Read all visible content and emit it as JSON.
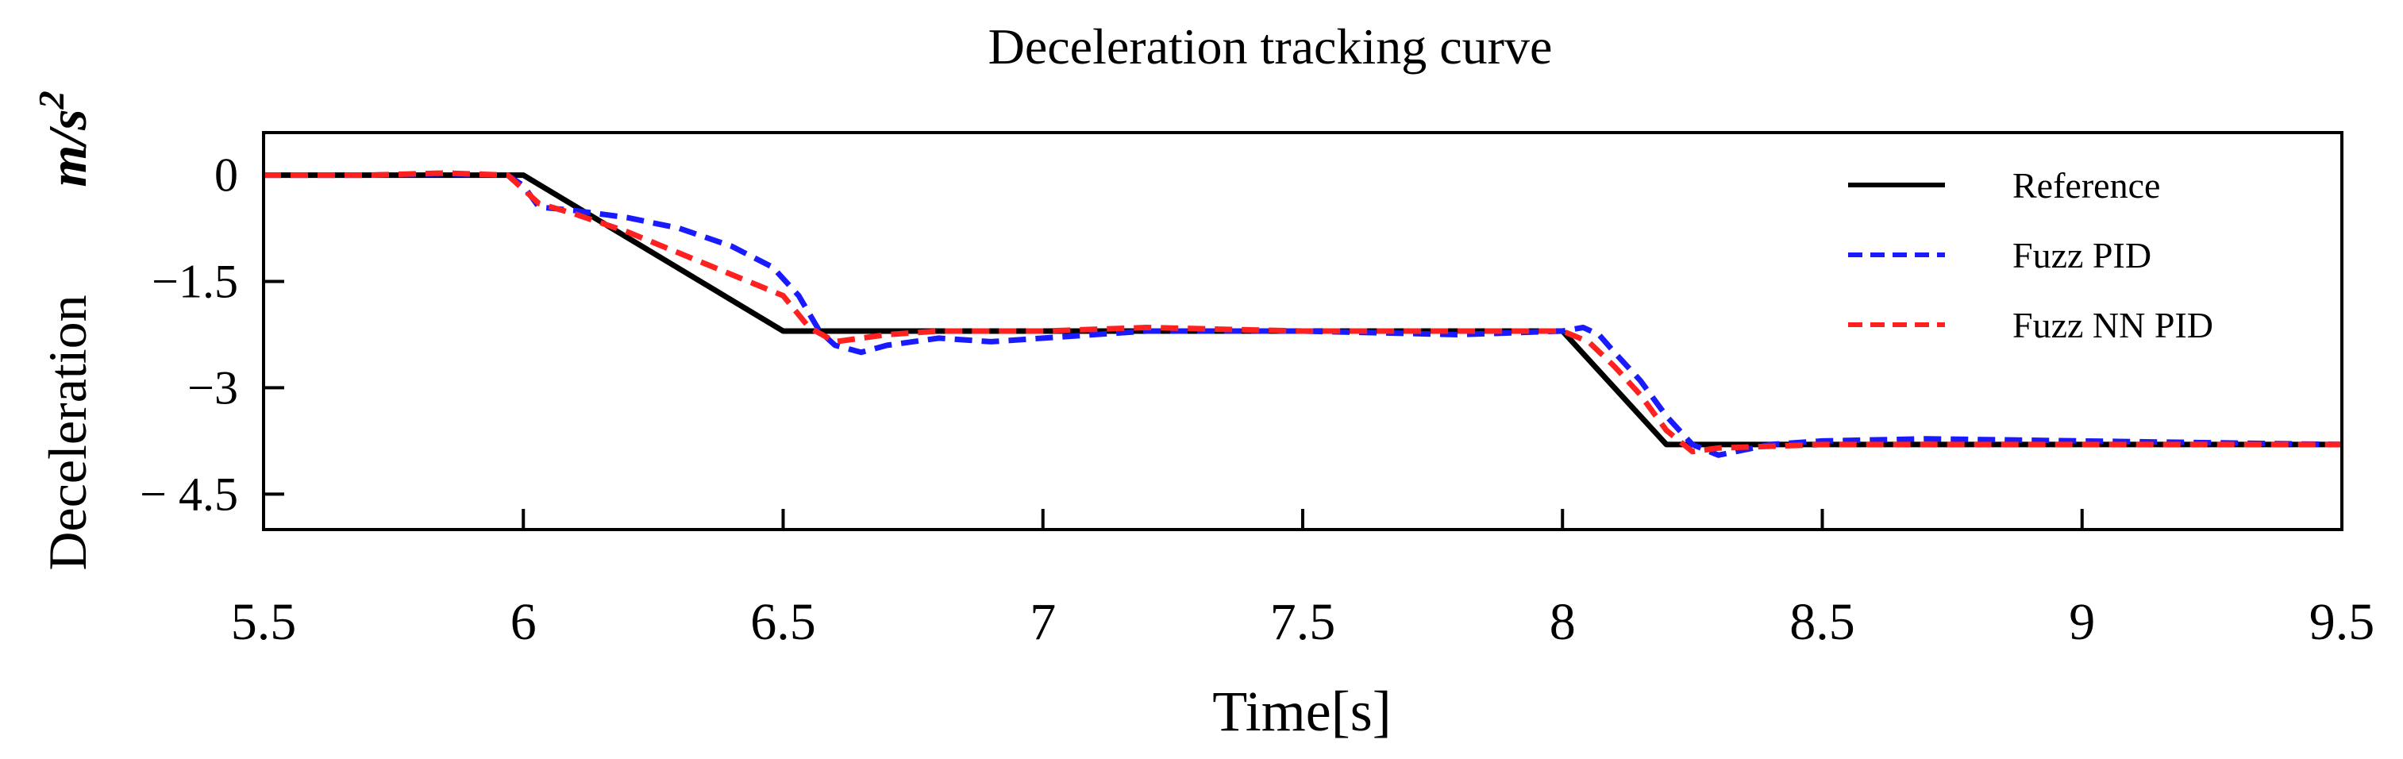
{
  "chart_data": {
    "type": "line",
    "title": "Deceleration tracking curve",
    "xlabel": "Time[s]",
    "ylabel": "Deceleration",
    "y_unit": {
      "base": "m/s",
      "exponent": "2"
    },
    "xlim": [
      5.5,
      9.5
    ],
    "ylim": [
      -5.0,
      0.6
    ],
    "x_ticks": [
      5.5,
      6,
      6.5,
      7,
      7.5,
      8,
      8.5,
      9,
      9.5
    ],
    "x_tick_labels": [
      "5.5",
      "6",
      "6.5",
      "7",
      "7.5",
      "8",
      "8.5",
      "9",
      "9.5"
    ],
    "y_ticks": [
      0,
      -1.5,
      -3,
      -4.5
    ],
    "y_tick_labels": [
      "0",
      "−1.5",
      "−3",
      "− 4.5"
    ],
    "grid": false,
    "legend_position": "top-right",
    "series": [
      {
        "name": "Reference",
        "color": "#000000",
        "dash": "solid",
        "x": [
          5.5,
          6.0,
          6.5,
          8.0,
          8.2,
          9.5
        ],
        "y": [
          0,
          0,
          -2.2,
          -2.2,
          -3.8,
          -3.8
        ]
      },
      {
        "name": "Fuzz PID",
        "color": "#1a1aff",
        "dash": "dashed",
        "x": [
          5.5,
          5.7,
          5.85,
          5.97,
          6.0,
          6.03,
          6.1,
          6.2,
          6.3,
          6.4,
          6.48,
          6.53,
          6.57,
          6.6,
          6.65,
          6.7,
          6.8,
          6.9,
          7.0,
          7.2,
          7.5,
          7.8,
          8.0,
          8.04,
          8.07,
          8.1,
          8.15,
          8.2,
          8.25,
          8.3,
          8.4,
          8.5,
          8.7,
          9.0,
          9.5
        ],
        "y": [
          0,
          0,
          0.02,
          0.0,
          -0.15,
          -0.45,
          -0.5,
          -0.6,
          -0.75,
          -1.0,
          -1.3,
          -1.7,
          -2.2,
          -2.4,
          -2.5,
          -2.4,
          -2.3,
          -2.35,
          -2.3,
          -2.2,
          -2.2,
          -2.25,
          -2.2,
          -2.15,
          -2.25,
          -2.5,
          -2.9,
          -3.4,
          -3.8,
          -3.95,
          -3.8,
          -3.75,
          -3.72,
          -3.75,
          -3.8
        ]
      },
      {
        "name": "Fuzz NN PID",
        "color": "#ff2020",
        "dash": "dashed",
        "x": [
          5.5,
          5.7,
          5.85,
          5.97,
          6.0,
          6.03,
          6.1,
          6.2,
          6.3,
          6.4,
          6.5,
          6.55,
          6.6,
          6.65,
          6.7,
          6.8,
          7.0,
          7.2,
          7.5,
          8.0,
          8.05,
          8.1,
          8.15,
          8.2,
          8.25,
          8.3,
          8.5,
          9.0,
          9.5
        ],
        "y": [
          0,
          0,
          0.03,
          0.0,
          -0.2,
          -0.4,
          -0.55,
          -0.8,
          -1.1,
          -1.4,
          -1.7,
          -2.15,
          -2.35,
          -2.3,
          -2.25,
          -2.2,
          -2.2,
          -2.15,
          -2.2,
          -2.2,
          -2.35,
          -2.7,
          -3.1,
          -3.6,
          -3.9,
          -3.85,
          -3.8,
          -3.8,
          -3.8
        ]
      }
    ]
  }
}
